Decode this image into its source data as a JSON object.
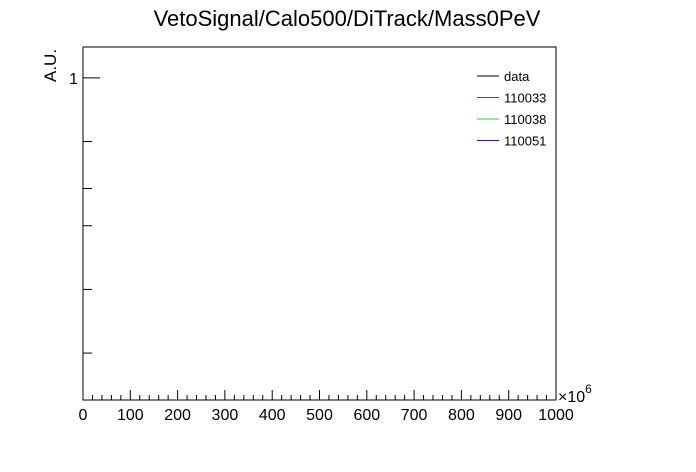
{
  "chart_data": {
    "type": "line",
    "title": "VetoSignal/Calo500/DiTrack/Mass0PeV",
    "xlabel": "",
    "ylabel": "A.U.",
    "x_multiplier": "×10",
    "x_multiplier_exponent": "6",
    "xlim": [
      0,
      1000
    ],
    "x_ticks": [
      "0",
      "100",
      "200",
      "300",
      "400",
      "500",
      "600",
      "700",
      "800",
      "900",
      "1000"
    ],
    "y_scale": "log",
    "y_tick_labels": [
      {
        "value": 1,
        "label": "1"
      }
    ],
    "y_minor_ticks": [
      0.5,
      0.3,
      0.2,
      0.1,
      0.05
    ],
    "ylim": [
      0.03,
      1.4
    ],
    "grid": false,
    "legend_position": "top-right",
    "series": [
      {
        "name": "data",
        "color": "#000000",
        "values": []
      },
      {
        "name": "110033",
        "color": "#ae2335",
        "values": []
      },
      {
        "name": "110038",
        "color": "#2ec935",
        "values": []
      },
      {
        "name": "110051",
        "color": "#1b1bb0",
        "values": []
      }
    ]
  }
}
